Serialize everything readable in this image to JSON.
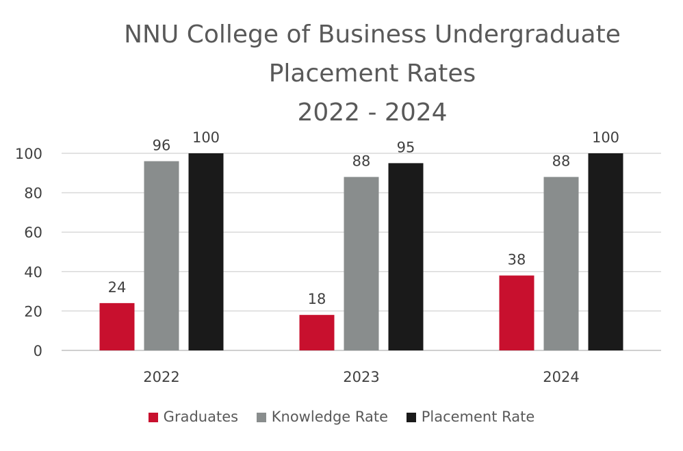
{
  "chart_data": {
    "type": "bar",
    "title_lines": [
      "NNU College of Business Undergraduate",
      "Placement Rates",
      "2022 - 2024"
    ],
    "xlabel": "",
    "ylabel": "",
    "categories": [
      "2022",
      "2023",
      "2024"
    ],
    "series": [
      {
        "name": "Graduates",
        "values": [
          24,
          18,
          38
        ],
        "color": "#C8102E"
      },
      {
        "name": "Knowledge Rate",
        "values": [
          96,
          88,
          88
        ],
        "color": "#898D8D"
      },
      {
        "name": "Placement Rate",
        "values": [
          100,
          95,
          100
        ],
        "color": "#1A1A1A"
      }
    ],
    "ylim": [
      0,
      100
    ],
    "yticks": [
      0,
      20,
      40,
      60,
      80,
      100
    ],
    "grid": true,
    "data_labels": true,
    "legend_position": "bottom"
  }
}
